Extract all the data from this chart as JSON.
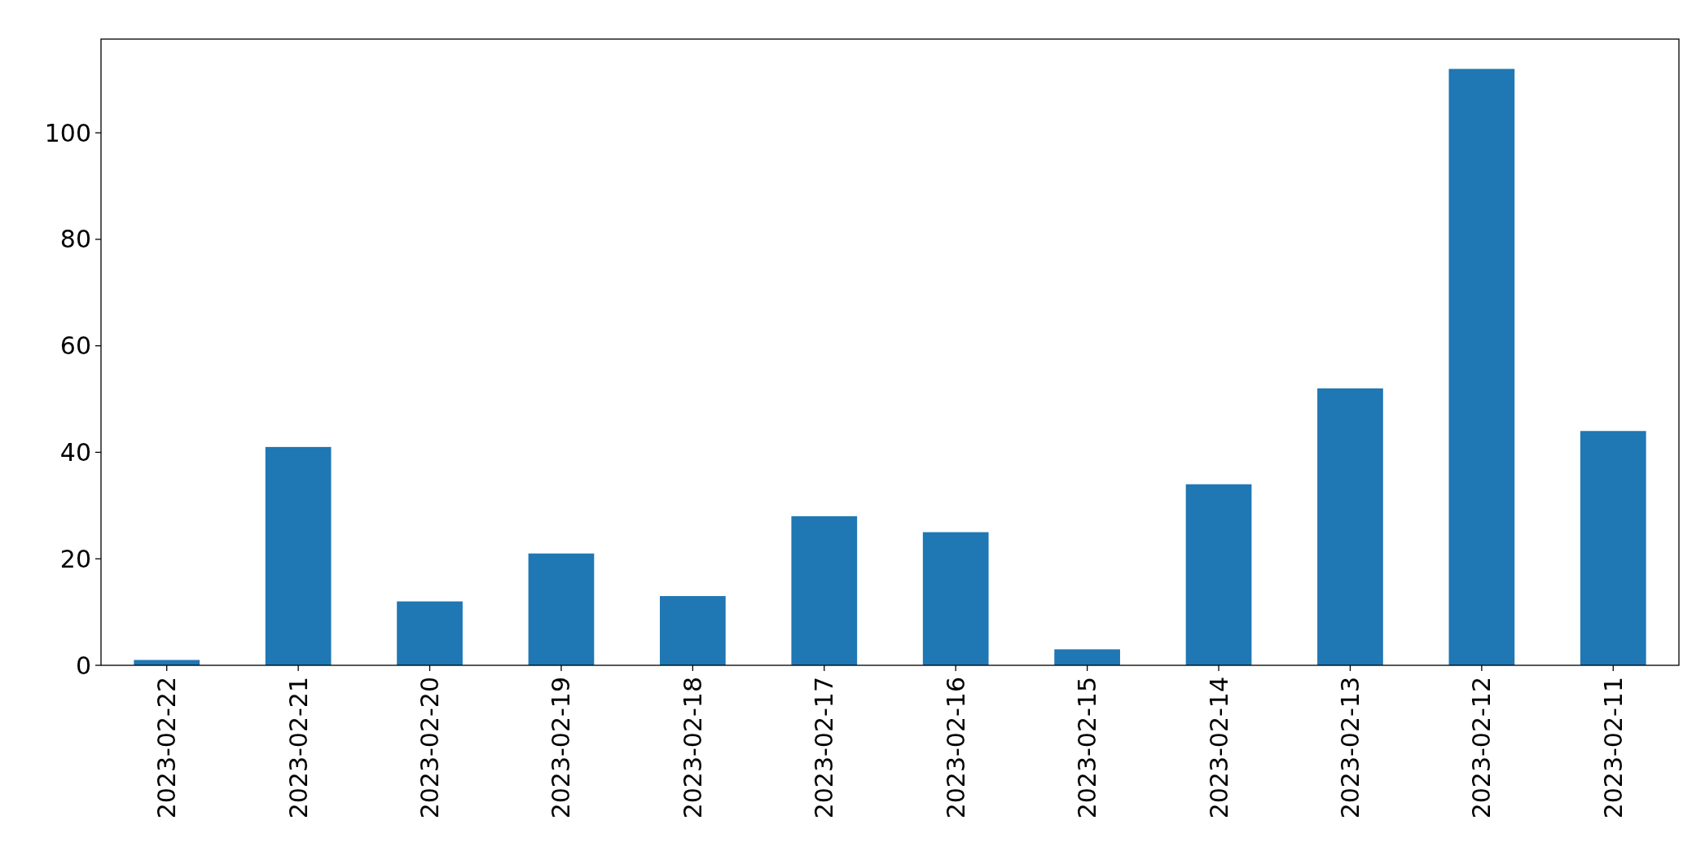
{
  "chart_data": {
    "type": "bar",
    "categories": [
      "2023-02-22",
      "2023-02-21",
      "2023-02-20",
      "2023-02-19",
      "2023-02-18",
      "2023-02-17",
      "2023-02-16",
      "2023-02-15",
      "2023-02-14",
      "2023-02-13",
      "2023-02-12",
      "2023-02-11"
    ],
    "values": [
      1,
      41,
      12,
      21,
      13,
      28,
      25,
      3,
      34,
      52,
      112,
      44
    ],
    "color": "#1f77b4",
    "ylim": [
      0,
      117.6
    ],
    "yticks": [
      0,
      20,
      40,
      60,
      80,
      100
    ],
    "grid": false
  }
}
